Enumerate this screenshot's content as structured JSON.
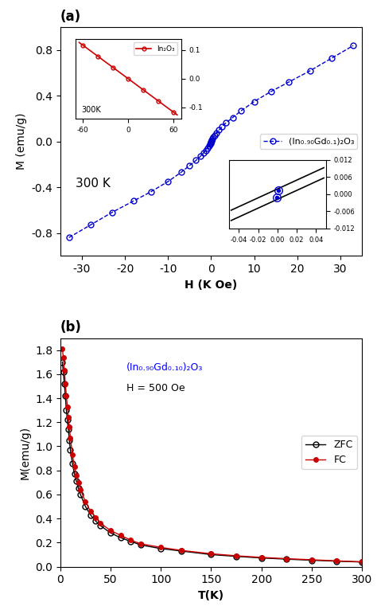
{
  "chart_data": [
    {
      "type": "line",
      "title": "(a)",
      "xlabel": "H (K Oe)",
      "ylabel": "M (emu/g)",
      "xlim": [
        -35,
        35
      ],
      "ylim": [
        -1.0,
        1.0
      ],
      "xticks": [
        -30,
        -20,
        -10,
        0,
        10,
        20,
        30
      ],
      "yticks": [
        -0.8,
        -0.4,
        0.0,
        0.4,
        0.8
      ],
      "legend": "center right",
      "annotations": [
        {
          "text": "300 K"
        }
      ],
      "series": [
        {
          "name": "(In₀.₉₀Gd₀.₁)₂O₃",
          "color": "#0000cc",
          "marker": "circle",
          "line_style": "dashed",
          "x": [
            -33,
            -28,
            -23,
            -18,
            -14,
            -10,
            -7,
            -5,
            -3.5,
            -2.5,
            -1.8,
            -1.2,
            -0.8,
            -0.5,
            -0.3,
            -0.15,
            -0.05,
            0.0,
            0.05,
            0.15,
            0.3,
            0.5,
            0.8,
            1.2,
            1.8,
            2.5,
            3.5,
            5,
            7,
            10,
            14,
            18,
            23,
            28,
            33
          ],
          "values": [
            -0.84,
            -0.73,
            -0.62,
            -0.52,
            -0.44,
            -0.35,
            -0.27,
            -0.21,
            -0.165,
            -0.13,
            -0.1,
            -0.075,
            -0.055,
            -0.038,
            -0.025,
            -0.015,
            -0.006,
            0.0,
            0.006,
            0.015,
            0.025,
            0.038,
            0.055,
            0.075,
            0.1,
            0.13,
            0.165,
            0.21,
            0.27,
            0.35,
            0.44,
            0.52,
            0.62,
            0.73,
            0.84
          ]
        }
      ]
    },
    {
      "type": "line",
      "xlim": [
        -70,
        70
      ],
      "ylim": [
        -0.14,
        0.14
      ],
      "xticks": [
        -60,
        0,
        60
      ],
      "yticks": [
        -0.1,
        0.0,
        0.1
      ],
      "legend": "upper right",
      "annotations": [
        {
          "text": "300K"
        }
      ],
      "series": [
        {
          "name": "In₂O₃",
          "color": "#cc0000",
          "marker": "none",
          "line_style": "solid",
          "x": [
            -65,
            65
          ],
          "values": [
            0.12675,
            -0.12675
          ]
        },
        {
          "name": "In₂O₃",
          "color": "#cc0000",
          "marker": "circle",
          "line_style": "none",
          "x": [
            -60,
            -40,
            -20,
            0,
            20,
            40,
            60
          ],
          "values": [
            0.117,
            0.078,
            0.039,
            0.0,
            -0.039,
            -0.078,
            -0.117
          ]
        }
      ]
    },
    {
      "type": "line",
      "xlim": [
        -0.05,
        0.05
      ],
      "ylim": [
        -0.012,
        0.012
      ],
      "xticks": [
        -0.04,
        -0.02,
        {
          "value": 0.0,
          "label": "0.00"
        },
        0.02,
        0.04
      ],
      "yticks": [
        -0.012,
        -0.006,
        {
          "value": 0.0,
          "label": "0.000"
        },
        0.006,
        0.012
      ],
      "series": [
        {
          "color": "black",
          "marker": "none",
          "line_style": "solid",
          "x": [
            -0.048,
            0.048
          ],
          "values": [
            -0.00564,
            0.00924
          ]
        },
        {
          "color": "black",
          "marker": "none",
          "line_style": "solid",
          "x": [
            -0.048,
            0.048
          ],
          "values": [
            -0.00924,
            0.00564
          ]
        },
        {
          "color": "#0000cc",
          "marker": "ringed",
          "line_style": "none",
          "x": [
            0.001,
            -0.001
          ],
          "values": [
            0.0012,
            -0.0012
          ]
        }
      ]
    },
    {
      "type": "line",
      "title": "(b)",
      "xlabel": "T(K)",
      "ylabel": "M(emu/g)",
      "xlim": [
        0,
        300
      ],
      "ylim": [
        0,
        1.9
      ],
      "xticks": [
        0,
        50,
        100,
        150,
        200,
        250,
        300
      ],
      "yticks": [
        0.0,
        0.2,
        0.4,
        0.6,
        0.8,
        1.0,
        1.2,
        1.4,
        1.6,
        1.8
      ],
      "legend": "center right",
      "annotations": [
        {
          "text": "(In₀.₉₀Gd₀.₁₀)₂O₃",
          "color": "blue"
        },
        {
          "text": "H = 500 Oe"
        }
      ],
      "series": [
        {
          "name": "ZFC",
          "color": "black",
          "marker": "circle",
          "line_style": "solid",
          "x": [
            2,
            3,
            4,
            5,
            6,
            7,
            8,
            9,
            10,
            12,
            14,
            16,
            18,
            20,
            25,
            30,
            35,
            40,
            50,
            60,
            70,
            80,
            100,
            120,
            150,
            175,
            200,
            225,
            250,
            275,
            300
          ],
          "values": [
            1.7,
            1.62,
            1.52,
            1.42,
            1.3,
            1.22,
            1.14,
            1.05,
            0.97,
            0.86,
            0.77,
            0.71,
            0.65,
            0.6,
            0.5,
            0.43,
            0.38,
            0.34,
            0.28,
            0.24,
            0.21,
            0.18,
            0.15,
            0.13,
            0.1,
            0.085,
            0.072,
            0.062,
            0.053,
            0.045,
            0.038
          ]
        },
        {
          "name": "FC",
          "color": "#cc0000",
          "marker": "dot",
          "line_style": "solid",
          "x": [
            2,
            3,
            4,
            5,
            6,
            7,
            8,
            9,
            10,
            12,
            14,
            16,
            18,
            20,
            25,
            30,
            35,
            40,
            50,
            60,
            70,
            80,
            100,
            120,
            150,
            175,
            200,
            225,
            250,
            275,
            300
          ],
          "values": [
            1.81,
            1.74,
            1.63,
            1.52,
            1.42,
            1.33,
            1.24,
            1.16,
            1.07,
            0.93,
            0.83,
            0.76,
            0.7,
            0.64,
            0.54,
            0.46,
            0.41,
            0.36,
            0.3,
            0.26,
            0.22,
            0.19,
            0.16,
            0.135,
            0.107,
            0.09,
            0.077,
            0.066,
            0.057,
            0.048,
            0.04
          ]
        }
      ]
    }
  ]
}
